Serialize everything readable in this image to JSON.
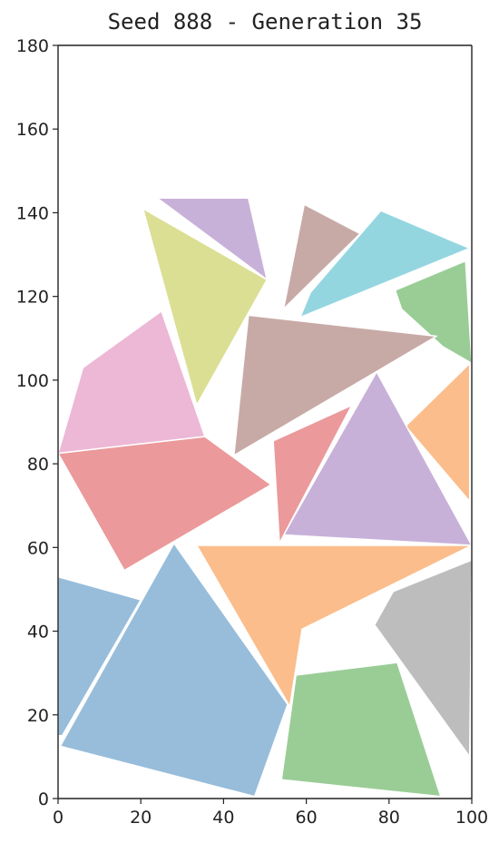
{
  "chart_data": {
    "type": "polygon-packing",
    "title": "Seed 888 - Generation 35",
    "xlim": [
      0,
      100
    ],
    "ylim": [
      0,
      180
    ],
    "xticks": [
      0,
      20,
      40,
      60,
      80,
      100
    ],
    "yticks": [
      0,
      20,
      40,
      60,
      80,
      100,
      120,
      140,
      160,
      180
    ],
    "grid": false,
    "polygons": [
      {
        "color": "#c8b1d8",
        "points": [
          [
            24,
            143.5
          ],
          [
            46,
            143.5
          ],
          [
            50.5,
            124
          ]
        ]
      },
      {
        "color": "#dbdf94",
        "points": [
          [
            20.5,
            141
          ],
          [
            50.5,
            124
          ],
          [
            33.5,
            94
          ]
        ]
      },
      {
        "color": "#c7aaa6",
        "points": [
          [
            59.5,
            142
          ],
          [
            73,
            135
          ],
          [
            54.5,
            117
          ]
        ]
      },
      {
        "color": "#94d6e0",
        "points": [
          [
            78,
            140.5
          ],
          [
            99.5,
            131.5
          ],
          [
            58.5,
            115
          ],
          [
            61,
            121
          ]
        ]
      },
      {
        "color": "#9acd96",
        "points": [
          [
            98.5,
            128.5
          ],
          [
            100,
            104
          ],
          [
            93,
            108
          ],
          [
            83,
            117
          ],
          [
            81.5,
            121.5
          ]
        ]
      },
      {
        "color": "#c7aaa6",
        "points": [
          [
            46,
            115.5
          ],
          [
            91.5,
            110.5
          ],
          [
            42.5,
            82
          ]
        ]
      },
      {
        "color": "#ecb8d6",
        "points": [
          [
            25,
            116.5
          ],
          [
            6,
            103
          ],
          [
            0,
            82.5
          ],
          [
            35.5,
            86.5
          ]
        ]
      },
      {
        "color": "#fbbd8b",
        "points": [
          [
            99.5,
            104
          ],
          [
            84,
            89
          ],
          [
            99.5,
            71
          ]
        ]
      },
      {
        "color": "#c8b1d8",
        "points": [
          [
            77,
            102
          ],
          [
            100,
            60.5
          ],
          [
            54.5,
            63
          ]
        ]
      },
      {
        "color": "#eb999b",
        "points": [
          [
            71,
            94
          ],
          [
            52,
            85.5
          ],
          [
            53.5,
            61
          ]
        ]
      },
      {
        "color": "#eb999b",
        "points": [
          [
            0,
            82.5
          ],
          [
            35.5,
            86.5
          ],
          [
            51.5,
            75
          ],
          [
            16,
            54.5
          ]
        ]
      },
      {
        "color": "#fbbd8b",
        "points": [
          [
            33.5,
            60.5
          ],
          [
            100,
            60.5
          ],
          [
            59,
            40.5
          ],
          [
            56,
            22
          ]
        ]
      },
      {
        "color": "#97bddb",
        "points": [
          [
            0,
            53
          ],
          [
            20,
            47.5
          ],
          [
            1,
            15
          ],
          [
            0,
            15
          ]
        ]
      },
      {
        "color": "#97bddb",
        "points": [
          [
            28,
            61
          ],
          [
            0.5,
            12.5
          ],
          [
            47.5,
            0.5
          ],
          [
            55.5,
            22.5
          ]
        ]
      },
      {
        "color": "#bdbdbd",
        "points": [
          [
            100,
            57
          ],
          [
            81,
            49.5
          ],
          [
            76.5,
            41.5
          ],
          [
            99.5,
            10
          ]
        ]
      },
      {
        "color": "#9acd96",
        "points": [
          [
            57.5,
            29.5
          ],
          [
            82,
            32.5
          ],
          [
            92.5,
            0.5
          ],
          [
            54,
            4.5
          ]
        ]
      }
    ]
  }
}
